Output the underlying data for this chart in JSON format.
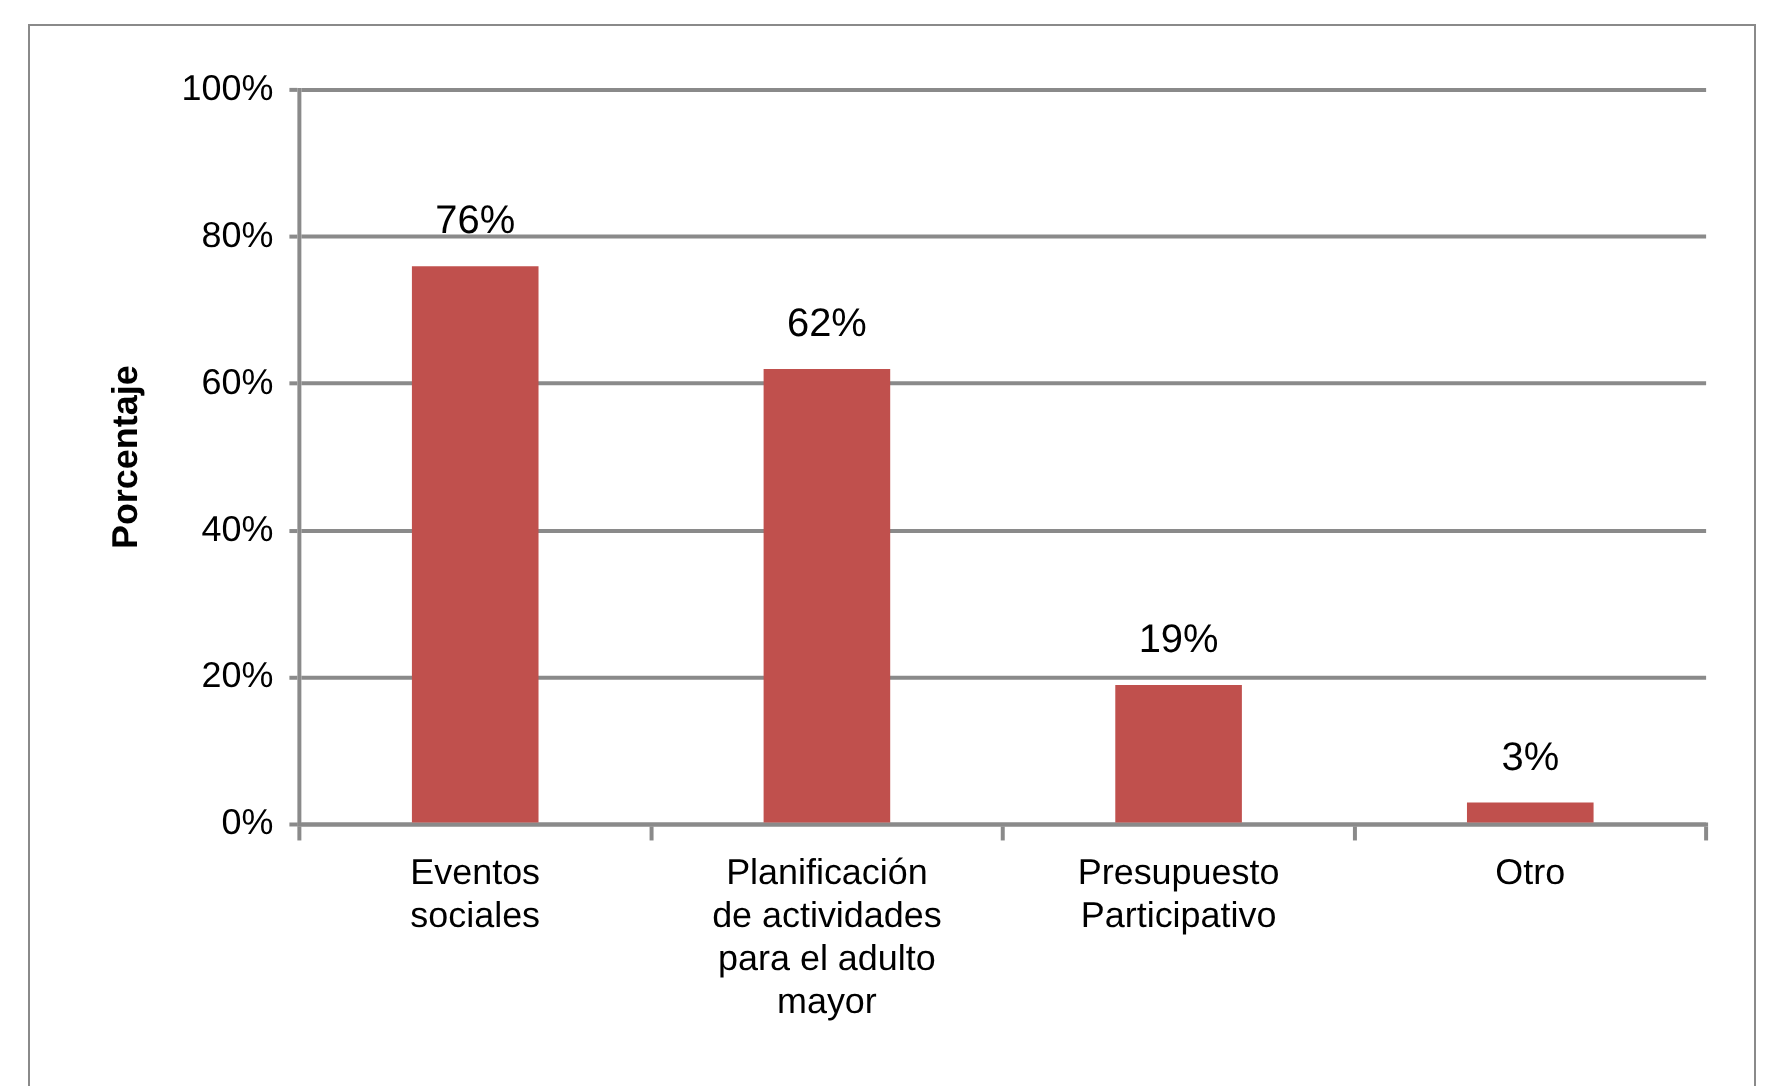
{
  "chart_data": {
    "type": "bar",
    "ylabel": "Porcentaje",
    "categories": [
      "Eventos sociales",
      "Planificación de actividades para el adulto mayor",
      "Presupuesto Participativo",
      "Otro"
    ],
    "values": [
      76,
      62,
      19,
      3
    ],
    "color": "#c0504d",
    "value_labels": [
      "76%",
      "62%",
      "19%",
      "3%"
    ],
    "ylim": [
      0,
      100
    ],
    "yticks": [
      {
        "value": 0,
        "label": "0%"
      },
      {
        "value": 20,
        "label": "20%"
      },
      {
        "value": 40,
        "label": "40%"
      },
      {
        "value": 60,
        "label": "60%"
      },
      {
        "value": 80,
        "label": "80%"
      },
      {
        "value": 100,
        "label": "100%"
      }
    ],
    "grid": "y"
  }
}
